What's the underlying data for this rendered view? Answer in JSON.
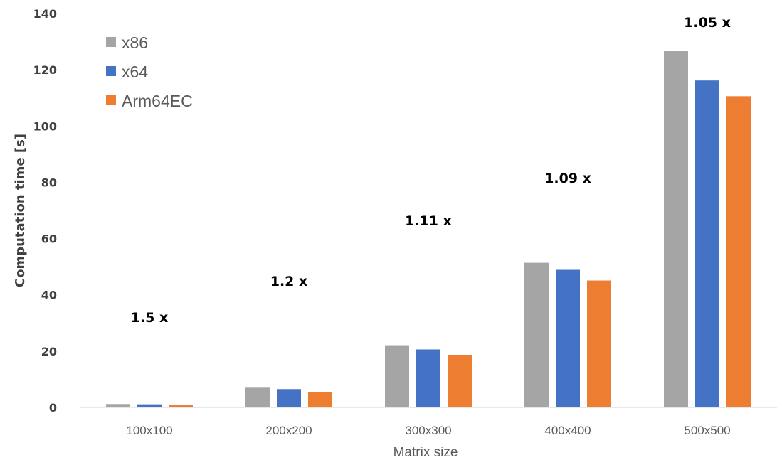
{
  "chart_data": {
    "type": "bar",
    "title": "",
    "xlabel": "Matrix size",
    "ylabel": "Computation time [s]",
    "ylim": [
      0,
      140
    ],
    "yticks": [
      0,
      20,
      40,
      60,
      80,
      100,
      120,
      140
    ],
    "grid": false,
    "legend_position": "top-left",
    "categories": [
      "100x100",
      "200x200",
      "300x300",
      "400x400",
      "500x500"
    ],
    "series": [
      {
        "name": "x86",
        "color": "#a5a5a5",
        "values": [
          1.2,
          7.0,
          22.1,
          51.4,
          126.6
        ]
      },
      {
        "name": "x64",
        "color": "#4472c4",
        "values": [
          1.1,
          6.5,
          20.6,
          48.9,
          116.2
        ]
      },
      {
        "name": "Arm64EC",
        "color": "#ed7d31",
        "values": [
          0.8,
          5.5,
          18.7,
          45.1,
          110.6
        ]
      }
    ],
    "annotations": [
      "1.5 x",
      "1.2 x",
      "1.11 x",
      "1.09 x",
      "1.05 x"
    ]
  }
}
